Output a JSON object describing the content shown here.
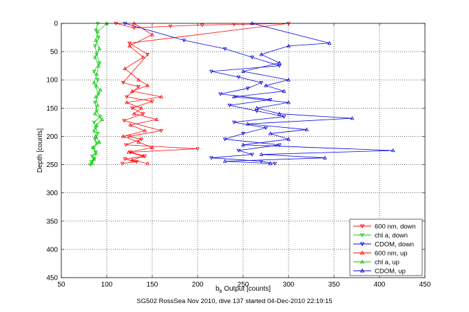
{
  "chart_data": {
    "type": "scatter",
    "caption": "SG502 RossSea Nov 2010, dive 137 started 04-Dec-2010 22:19:15",
    "xlabel_main": "b",
    "xlabel_sub": "b",
    "xlabel_rest": " Output [counts]",
    "ylabel": "Depth [counts]",
    "xlim": [
      50,
      450
    ],
    "ylim": [
      0,
      450
    ],
    "y_reversed": true,
    "grid": true,
    "legend_position": "bottom-right",
    "xticks": [
      50,
      100,
      150,
      200,
      250,
      300,
      350,
      400,
      450
    ],
    "yticks": [
      0,
      50,
      100,
      150,
      200,
      250,
      300,
      350,
      400,
      450
    ],
    "series": [
      {
        "name": "600 nm, down",
        "color": "#ff0000",
        "marker": "triangle-down",
        "x": [
          110,
          130,
          170,
          205,
          240,
          300,
          125,
          145,
          118,
          135,
          122,
          150,
          128,
          140,
          119,
          160,
          124,
          138,
          121,
          200,
          126,
          142,
          120,
          133,
          117
        ],
        "y": [
          0,
          8,
          5,
          3,
          2,
          0,
          35,
          55,
          105,
          112,
          130,
          138,
          150,
          160,
          172,
          190,
          200,
          205,
          215,
          222,
          228,
          235,
          240,
          245,
          248
        ]
      },
      {
        "name": "chl a, down",
        "color": "#00cc00",
        "marker": "triangle-down",
        "x": [
          90,
          88,
          91,
          87,
          89,
          92,
          86,
          90,
          88,
          91,
          87,
          89,
          93,
          86,
          88,
          90,
          87,
          89,
          85,
          88,
          84,
          86,
          83,
          82
        ],
        "y": [
          0,
          12,
          25,
          40,
          55,
          70,
          85,
          100,
          112,
          125,
          140,
          155,
          165,
          175,
          185,
          195,
          205,
          212,
          220,
          228,
          235,
          240,
          245,
          250
        ]
      },
      {
        "name": "CDOM, down",
        "color": "#0000dd",
        "marker": "triangle-down",
        "x": [
          120,
          185,
          230,
          260,
          290,
          215,
          245,
          270,
          255,
          225,
          280,
          235,
          265,
          295,
          240,
          275,
          250,
          230,
          290,
          245,
          260,
          215,
          270,
          285
        ],
        "y": [
          0,
          30,
          45,
          60,
          75,
          85,
          95,
          105,
          115,
          125,
          135,
          145,
          155,
          165,
          175,
          185,
          195,
          205,
          215,
          225,
          232,
          238,
          244,
          248
        ]
      },
      {
        "name": "600 nm, up",
        "color": "#ff0000",
        "marker": "triangle-up",
        "x": [
          130,
          150,
          125,
          140,
          120,
          135,
          145,
          128,
          160,
          122,
          138,
          130,
          155,
          126,
          142,
          118,
          135,
          150,
          124,
          140,
          128,
          145
        ],
        "y": [
          0,
          20,
          40,
          60,
          80,
          100,
          110,
          120,
          130,
          140,
          150,
          160,
          170,
          180,
          190,
          200,
          210,
          220,
          228,
          235,
          242,
          248
        ]
      },
      {
        "name": "chl a, up",
        "color": "#00cc00",
        "marker": "triangle-up",
        "x": [
          100,
          90,
          88,
          92,
          87,
          91,
          89,
          86,
          93,
          88,
          90,
          87,
          95,
          89,
          86,
          88,
          92,
          85,
          88,
          86,
          84
        ],
        "y": [
          0,
          15,
          30,
          45,
          60,
          75,
          90,
          105,
          118,
          130,
          145,
          160,
          170,
          180,
          190,
          200,
          210,
          220,
          230,
          240,
          248
        ]
      },
      {
        "name": "CDOM, up",
        "color": "#0000dd",
        "marker": "triangle-up",
        "x": [
          260,
          345,
          300,
          270,
          290,
          250,
          300,
          275,
          295,
          240,
          300,
          265,
          290,
          370,
          255,
          320,
          280,
          300,
          250,
          415,
          270,
          340,
          230,
          280
        ],
        "y": [
          0,
          35,
          40,
          55,
          70,
          85,
          100,
          110,
          120,
          130,
          140,
          150,
          160,
          168,
          178,
          188,
          195,
          205,
          215,
          225,
          232,
          238,
          244,
          248
        ]
      }
    ]
  }
}
